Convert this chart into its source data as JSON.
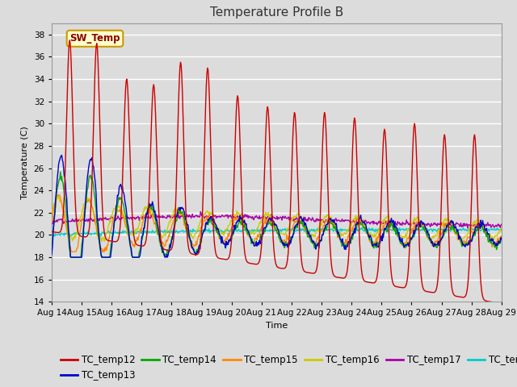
{
  "title": "Temperature Profile B",
  "xlabel": "Time",
  "ylabel": "Temperature (C)",
  "ylim": [
    14,
    39
  ],
  "yticks": [
    14,
    16,
    18,
    20,
    22,
    24,
    26,
    28,
    30,
    32,
    34,
    36,
    38
  ],
  "date_labels": [
    "Aug 14",
    "Aug 15",
    "Aug 16",
    "Aug 17",
    "Aug 18",
    "Aug 19",
    "Aug 20",
    "Aug 21",
    "Aug 22",
    "Aug 23",
    "Aug 24",
    "Aug 25",
    "Aug 26",
    "Aug 27",
    "Aug 28",
    "Aug 29"
  ],
  "sw_temp_annotation": "SW_Temp",
  "series_colors": {
    "TC_temp12": "#cc0000",
    "TC_temp13": "#0000cc",
    "TC_temp14": "#00aa00",
    "TC_temp15": "#ff8800",
    "TC_temp16": "#cccc00",
    "TC_temp17": "#aa00aa",
    "TC_temp18": "#00cccc"
  },
  "background_color": "#dcdcdc",
  "plot_bg_color": "#dcdcdc",
  "grid_color": "#ffffff",
  "title_fontsize": 11,
  "axis_label_fontsize": 8,
  "tick_fontsize": 7.5,
  "legend_fontsize": 8.5
}
